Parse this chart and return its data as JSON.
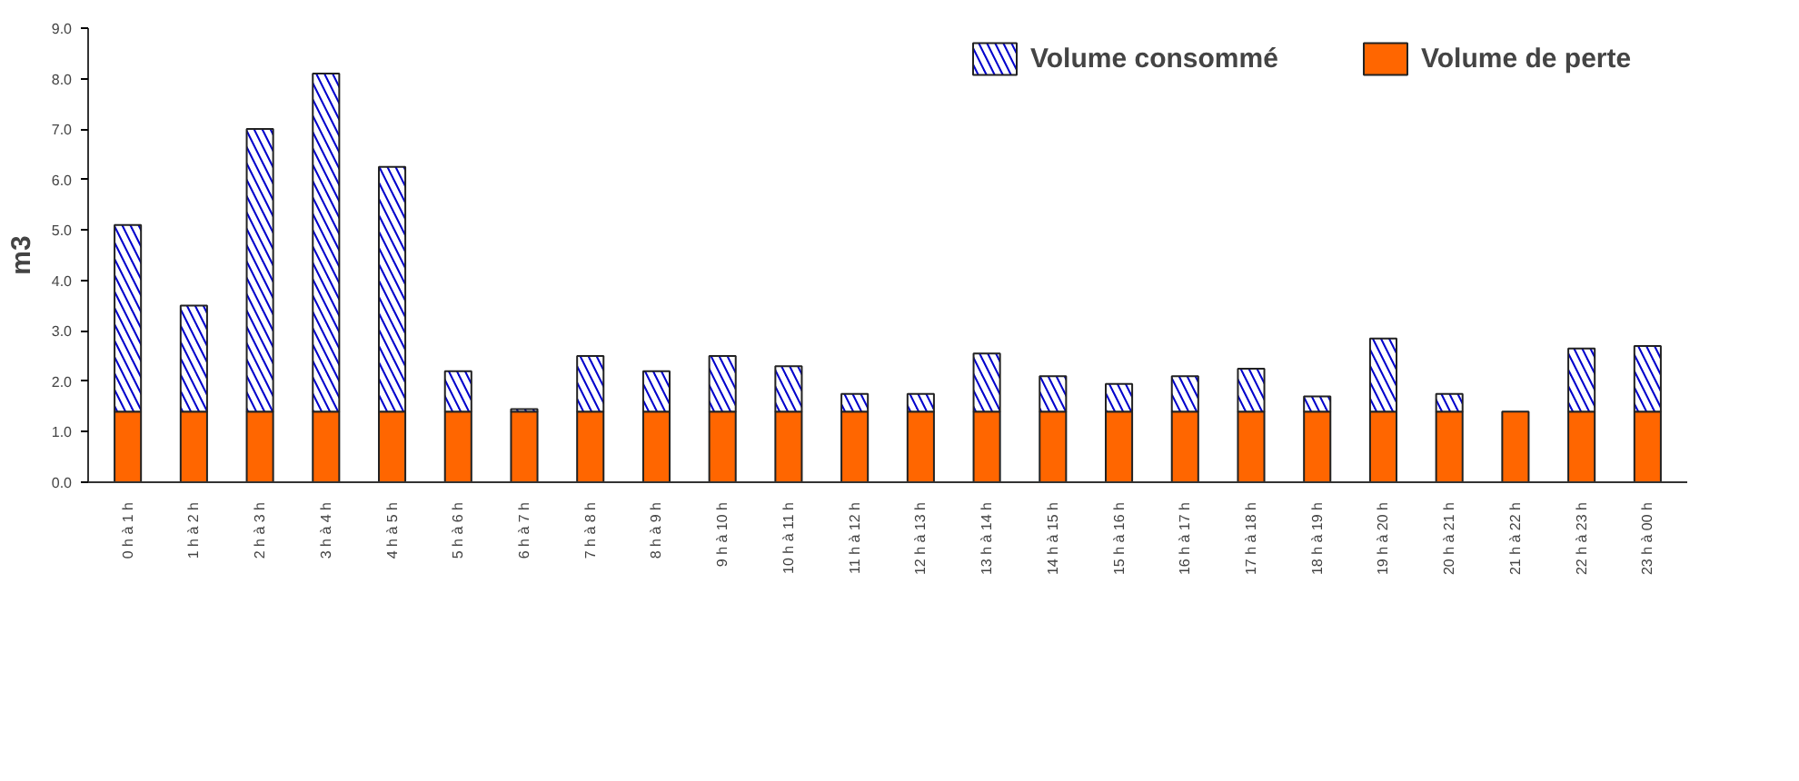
{
  "chart_data": {
    "type": "bar",
    "stacked": true,
    "ylabel": "m3",
    "categories": [
      "0 h à 1 h",
      "1 h à 2 h",
      "2 h à 3 h",
      "3 h à 4 h",
      "4 h à 5 h",
      "5 h à 6 h",
      "6 h à 7 h",
      "7 h à 8 h",
      "8 h à 9 h",
      "9 h à 10 h",
      "10 h à 11 h",
      "11 h à 12 h",
      "12 h à 13 h",
      "13 h à 14 h",
      "14 h à 15 h",
      "15 h à 16 h",
      "16 h à 17 h",
      "17 h à 18 h",
      "18 h à 19 h",
      "19 h à 20 h",
      "20 h à 21 h",
      "21 h à 22 h",
      "22 h à 23 h",
      "23 h à 00 h"
    ],
    "series": [
      {
        "name": "Volume de perte",
        "color": "#ff6600",
        "values": [
          1.4,
          1.4,
          1.4,
          1.4,
          1.4,
          1.4,
          1.4,
          1.4,
          1.4,
          1.4,
          1.4,
          1.4,
          1.4,
          1.4,
          1.4,
          1.4,
          1.4,
          1.4,
          1.4,
          1.4,
          1.4,
          1.4,
          1.4,
          1.4
        ]
      },
      {
        "name": "Volume consommé",
        "color": "#0000cc",
        "values": [
          3.7,
          2.1,
          5.6,
          6.7,
          4.85,
          0.8,
          0.05,
          1.1,
          0.8,
          1.1,
          0.9,
          0.35,
          0.35,
          1.15,
          0.7,
          0.55,
          0.7,
          0.85,
          0.3,
          1.45,
          0.35,
          null,
          1.25,
          1.3
        ]
      }
    ],
    "ylim": [
      0,
      9
    ],
    "yticks": [
      {
        "value": 0,
        "label": "0.0"
      },
      {
        "value": 1,
        "label": "1.0"
      },
      {
        "value": 2,
        "label": "2.0"
      },
      {
        "value": 3,
        "label": "3.0"
      },
      {
        "value": 4,
        "label": "4.0"
      },
      {
        "value": 5,
        "label": "5.0"
      },
      {
        "value": 6,
        "label": "6.0"
      },
      {
        "value": 7,
        "label": "7.0"
      },
      {
        "value": 8,
        "label": "8.0"
      },
      {
        "value": 9,
        "label": "9.0"
      }
    ],
    "grid": false,
    "legend": "top right"
  }
}
